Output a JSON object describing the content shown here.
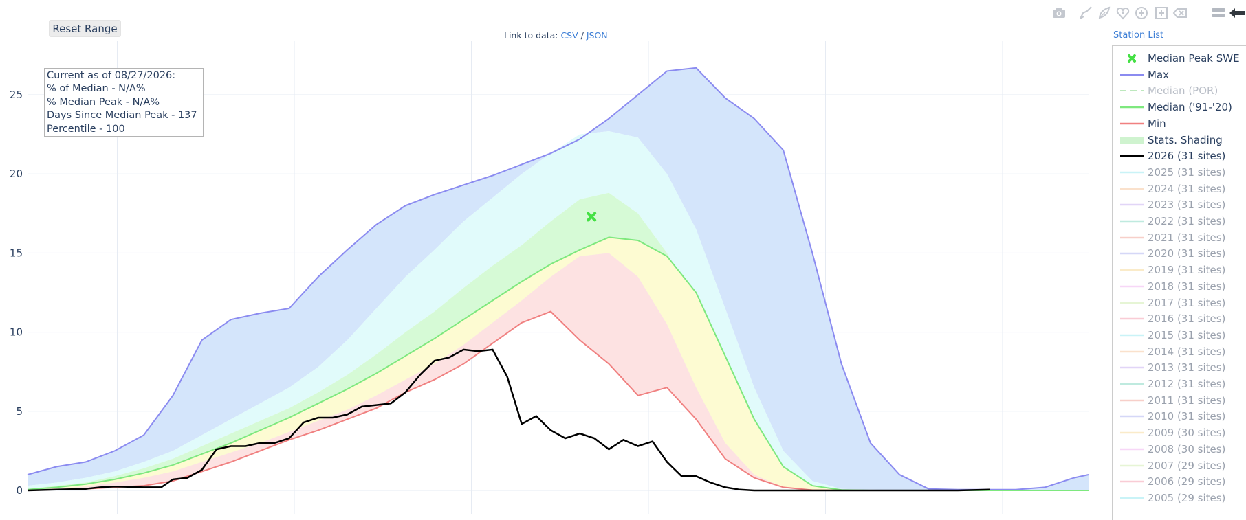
{
  "toolbar": {
    "reset_label": "Reset Range",
    "link_prefix": "Link to data: ",
    "csv_label": "CSV",
    "sep": " / ",
    "json_label": "JSON",
    "station_list_label": "Station List"
  },
  "modebar": {
    "icons": [
      "camera-icon",
      "draw-open-path-icon",
      "draw-closed-path-icon",
      "draw-circle-icon",
      "draw-circle-plus-icon",
      "draw-rectangle-icon",
      "eraser-icon",
      "toggle-menu-icon",
      "collapse-arrow-icon"
    ]
  },
  "annotation": {
    "line1": "Current as of 08/27/2026:",
    "line2": "% of Median - N/A%",
    "line3": "% Median Peak - N/A%",
    "line4": "Days Since Median Peak - 137",
    "line5": "Percentile - 100"
  },
  "legend": {
    "items": [
      {
        "label": "Median Peak SWE",
        "kind": "marker",
        "color": "#44e044",
        "state": "active"
      },
      {
        "label": "Max",
        "kind": "line",
        "color": "#8b8bf0",
        "state": "active"
      },
      {
        "label": "Median (POR)",
        "kind": "dash",
        "color": "#bde8bd",
        "state": "dim"
      },
      {
        "label": "Median ('91-'20)",
        "kind": "line",
        "color": "#7ee87e",
        "state": "active"
      },
      {
        "label": "Min",
        "kind": "line",
        "color": "#f08080",
        "state": "active"
      },
      {
        "label": "Stats. Shading",
        "kind": "box",
        "color": "#cff3cf",
        "state": "active"
      },
      {
        "label": "2026 (31 sites)",
        "kind": "line",
        "color": "#000000",
        "state": "active"
      },
      {
        "label": "2025 (31 sites)",
        "kind": "line",
        "color": "#9eeaf2",
        "state": "hidden"
      },
      {
        "label": "2024 (31 sites)",
        "kind": "line",
        "color": "#f7c9a3",
        "state": "hidden"
      },
      {
        "label": "2023 (31 sites)",
        "kind": "line",
        "color": "#c9b3f2",
        "state": "hidden"
      },
      {
        "label": "2022 (31 sites)",
        "kind": "line",
        "color": "#8bd9c5",
        "state": "hidden"
      },
      {
        "label": "2021 (31 sites)",
        "kind": "line",
        "color": "#f2a99e",
        "state": "hidden"
      },
      {
        "label": "2020 (31 sites)",
        "kind": "line",
        "color": "#b3b8f2",
        "state": "hidden"
      },
      {
        "label": "2019 (31 sites)",
        "kind": "line",
        "color": "#f7dc9e",
        "state": "hidden"
      },
      {
        "label": "2018 (31 sites)",
        "kind": "line",
        "color": "#f2b8f2",
        "state": "hidden"
      },
      {
        "label": "2017 (31 sites)",
        "kind": "line",
        "color": "#d3edb3",
        "state": "hidden"
      },
      {
        "label": "2016 (31 sites)",
        "kind": "line",
        "color": "#f5a3b3",
        "state": "hidden"
      },
      {
        "label": "2015 (31 sites)",
        "kind": "line",
        "color": "#9eeaf2",
        "state": "hidden"
      },
      {
        "label": "2014 (31 sites)",
        "kind": "line",
        "color": "#f7c9a3",
        "state": "hidden"
      },
      {
        "label": "2013 (31 sites)",
        "kind": "line",
        "color": "#c9b3f2",
        "state": "hidden"
      },
      {
        "label": "2012 (31 sites)",
        "kind": "line",
        "color": "#8bd9c5",
        "state": "hidden"
      },
      {
        "label": "2011 (31 sites)",
        "kind": "line",
        "color": "#f2a99e",
        "state": "hidden"
      },
      {
        "label": "2010 (31 sites)",
        "kind": "line",
        "color": "#b3b8f2",
        "state": "hidden"
      },
      {
        "label": "2009 (30 sites)",
        "kind": "line",
        "color": "#f7dc9e",
        "state": "hidden"
      },
      {
        "label": "2008 (30 sites)",
        "kind": "line",
        "color": "#f2b8f2",
        "state": "hidden"
      },
      {
        "label": "2007 (29 sites)",
        "kind": "line",
        "color": "#d3edb3",
        "state": "hidden"
      },
      {
        "label": "2006 (29 sites)",
        "kind": "line",
        "color": "#f5a3b3",
        "state": "hidden"
      },
      {
        "label": "2005 (29 sites)",
        "kind": "line",
        "color": "#9eeaf2",
        "state": "hidden"
      }
    ]
  },
  "chart_data": {
    "type": "area",
    "title": "",
    "xlabel": "",
    "ylabel": "",
    "ylim": [
      0,
      27
    ],
    "yticks": [
      0,
      5,
      10,
      15,
      20,
      25
    ],
    "x_days": [
      0,
      10,
      20,
      30,
      40,
      50,
      60,
      70,
      80,
      90,
      100,
      110,
      120,
      130,
      140,
      150,
      160,
      170,
      180,
      190,
      200,
      210,
      220,
      230,
      240,
      250,
      260,
      270,
      280,
      290,
      300,
      310,
      320,
      330,
      340,
      350,
      360,
      365
    ],
    "bands": {
      "max": [
        1.0,
        1.5,
        1.8,
        2.5,
        3.5,
        6.0,
        9.5,
        10.8,
        11.2,
        11.5,
        13.5,
        15.2,
        16.8,
        18.0,
        18.7,
        19.3,
        19.9,
        20.6,
        21.3,
        22.2,
        23.5,
        25.0,
        26.5,
        26.7,
        24.8,
        23.5,
        21.5,
        15.0,
        8.0,
        3.0,
        1.0,
        0.1,
        0.05,
        0.05,
        0.05,
        0.2,
        0.8,
        1.0
      ],
      "p90": [
        0.3,
        0.5,
        0.8,
        1.2,
        1.8,
        2.5,
        3.5,
        4.5,
        5.5,
        6.5,
        7.8,
        9.5,
        11.5,
        13.5,
        15.2,
        17.0,
        18.5,
        20.0,
        21.3,
        22.5,
        22.7,
        22.3,
        20.0,
        16.5,
        11.5,
        6.5,
        2.5,
        0.6,
        0.1,
        0.05,
        0.02,
        0.0,
        0.0,
        0.0,
        0.0,
        0.0,
        0.0,
        0.0
      ],
      "p70": [
        0.1,
        0.3,
        0.5,
        0.9,
        1.4,
        2.0,
        2.8,
        3.6,
        4.4,
        5.2,
        6.2,
        7.3,
        8.6,
        10.0,
        11.3,
        12.8,
        14.2,
        15.5,
        17.0,
        18.4,
        18.8,
        17.5,
        15.0,
        11.5,
        7.0,
        3.2,
        1.0,
        0.2,
        0.02,
        0.0,
        0.0,
        0.0,
        0.0,
        0.0,
        0.0,
        0.0,
        0.0,
        0.0
      ],
      "median": [
        0.05,
        0.2,
        0.4,
        0.7,
        1.1,
        1.6,
        2.3,
        3.0,
        3.8,
        4.6,
        5.5,
        6.4,
        7.4,
        8.5,
        9.6,
        10.8,
        12.0,
        13.2,
        14.3,
        15.2,
        16.0,
        15.8,
        14.8,
        12.5,
        8.5,
        4.5,
        1.5,
        0.3,
        0.03,
        0.0,
        0.0,
        0.0,
        0.0,
        0.0,
        0.0,
        0.0,
        0.0,
        0.0
      ],
      "p30": [
        0.03,
        0.1,
        0.25,
        0.5,
        0.8,
        1.2,
        1.8,
        2.4,
        3.0,
        3.7,
        4.4,
        5.1,
        6.0,
        7.0,
        8.0,
        9.2,
        10.6,
        12.0,
        13.5,
        14.8,
        15.0,
        13.5,
        10.5,
        6.5,
        3.0,
        1.0,
        0.2,
        0.05,
        0.0,
        0.0,
        0.0,
        0.0,
        0.0,
        0.0,
        0.0,
        0.0,
        0.0,
        0.0
      ],
      "min": [
        0.0,
        0.05,
        0.1,
        0.2,
        0.3,
        0.6,
        1.2,
        1.8,
        2.5,
        3.2,
        3.8,
        4.5,
        5.2,
        6.2,
        7.0,
        8.0,
        9.3,
        10.6,
        11.3,
        9.5,
        8.0,
        6.0,
        6.5,
        4.5,
        2.0,
        0.8,
        0.2,
        0.02,
        0.0,
        0.0,
        0.0,
        0.0,
        0.0,
        0.0,
        0.0,
        0.0,
        0.0,
        0.0
      ]
    },
    "series": [
      {
        "name": "2026 (31 sites)",
        "color": "#000000",
        "x_days": [
          0,
          10,
          20,
          25,
          30,
          40,
          46,
          50,
          55,
          60,
          65,
          70,
          75,
          80,
          85,
          90,
          95,
          100,
          105,
          110,
          115,
          120,
          125,
          130,
          135,
          140,
          145,
          150,
          155,
          160,
          165,
          170,
          175,
          180,
          185,
          190,
          195,
          200,
          205,
          210,
          215,
          220,
          225,
          230,
          235,
          240,
          245,
          250,
          255,
          260,
          270,
          280,
          300,
          320,
          331
        ],
        "values": [
          0.0,
          0.05,
          0.1,
          0.2,
          0.25,
          0.2,
          0.2,
          0.7,
          0.8,
          1.3,
          2.6,
          2.8,
          2.8,
          3.0,
          3.0,
          3.3,
          4.3,
          4.6,
          4.6,
          4.8,
          5.3,
          5.4,
          5.5,
          6.2,
          7.3,
          8.2,
          8.4,
          8.9,
          8.8,
          8.9,
          7.2,
          4.2,
          4.7,
          3.8,
          3.3,
          3.6,
          3.3,
          2.6,
          3.2,
          2.8,
          3.1,
          1.8,
          0.9,
          0.9,
          0.5,
          0.2,
          0.05,
          0.0,
          0.0,
          0.0,
          0.0,
          0.0,
          0.0,
          0.0,
          0.05
        ]
      }
    ],
    "markers": [
      {
        "name": "Median Peak SWE",
        "x_day": 194,
        "y": 17.3,
        "color": "#44e044"
      }
    ],
    "grid": true,
    "legend_position": "right"
  }
}
